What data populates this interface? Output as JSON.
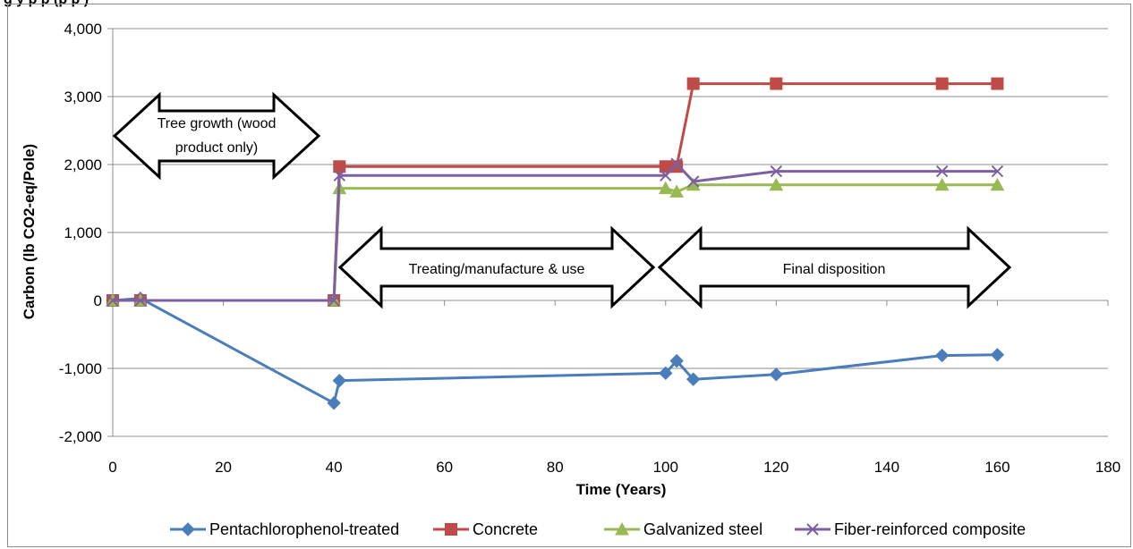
{
  "header_fragment": "g                                    y p          p            (p     p    )",
  "chart_data": {
    "type": "line",
    "title": "",
    "xlabel": "Time (Years)",
    "ylabel": "Carbon (lb CO2-eq/Pole)",
    "xlim": [
      0,
      180
    ],
    "ylim": [
      -2000,
      4000
    ],
    "x_ticks": [
      0,
      20,
      40,
      60,
      80,
      100,
      120,
      140,
      160,
      180
    ],
    "x_tick_labels": [
      "0",
      "20",
      "40",
      "60",
      "80",
      "100",
      "120",
      "140",
      "160",
      "180"
    ],
    "y_ticks": [
      -2000,
      -1000,
      0,
      1000,
      2000,
      3000,
      4000
    ],
    "y_tick_labels": [
      "-2,000",
      "-1,000",
      "0",
      "1,000",
      "2,000",
      "3,000",
      "4,000"
    ],
    "grid": "horizontal",
    "legend_position": "bottom",
    "series": [
      {
        "name": "Pentachlorophenol-treated",
        "color": "#4a7ebb",
        "marker": "diamond",
        "points": [
          [
            0,
            0
          ],
          [
            5,
            30
          ],
          [
            40,
            -1510
          ],
          [
            41,
            -1180
          ],
          [
            100,
            -1070
          ],
          [
            102,
            -890
          ],
          [
            105,
            -1160
          ],
          [
            120,
            -1090
          ],
          [
            150,
            -810
          ],
          [
            160,
            -800
          ]
        ]
      },
      {
        "name": "Concrete",
        "color": "#be4b48",
        "marker": "square",
        "points": [
          [
            0,
            0
          ],
          [
            5,
            0
          ],
          [
            40,
            0
          ],
          [
            41,
            1970
          ],
          [
            100,
            1970
          ],
          [
            102,
            1970
          ],
          [
            105,
            3190
          ],
          [
            120,
            3190
          ],
          [
            150,
            3190
          ],
          [
            160,
            3190
          ]
        ]
      },
      {
        "name": "Galvanized steel",
        "color": "#98b954",
        "marker": "triangle",
        "points": [
          [
            0,
            0
          ],
          [
            5,
            0
          ],
          [
            40,
            0
          ],
          [
            41,
            1650
          ],
          [
            100,
            1650
          ],
          [
            102,
            1600
          ],
          [
            105,
            1700
          ],
          [
            120,
            1700
          ],
          [
            150,
            1700
          ],
          [
            160,
            1700
          ]
        ]
      },
      {
        "name": "Fiber-reinforced composite",
        "color": "#7d60a0",
        "marker": "x",
        "points": [
          [
            0,
            0
          ],
          [
            5,
            0
          ],
          [
            40,
            0
          ],
          [
            41,
            1840
          ],
          [
            100,
            1840
          ],
          [
            102,
            2010
          ],
          [
            105,
            1750
          ],
          [
            120,
            1900
          ],
          [
            150,
            1900
          ],
          [
            160,
            1900
          ]
        ]
      }
    ],
    "annotations": [
      {
        "id": "tree",
        "lines": [
          "Tree growth (wood",
          "product only)"
        ]
      },
      {
        "id": "treat",
        "lines": [
          "Treating/manufacture & use"
        ]
      },
      {
        "id": "final",
        "lines": [
          "Final disposition"
        ]
      }
    ]
  }
}
